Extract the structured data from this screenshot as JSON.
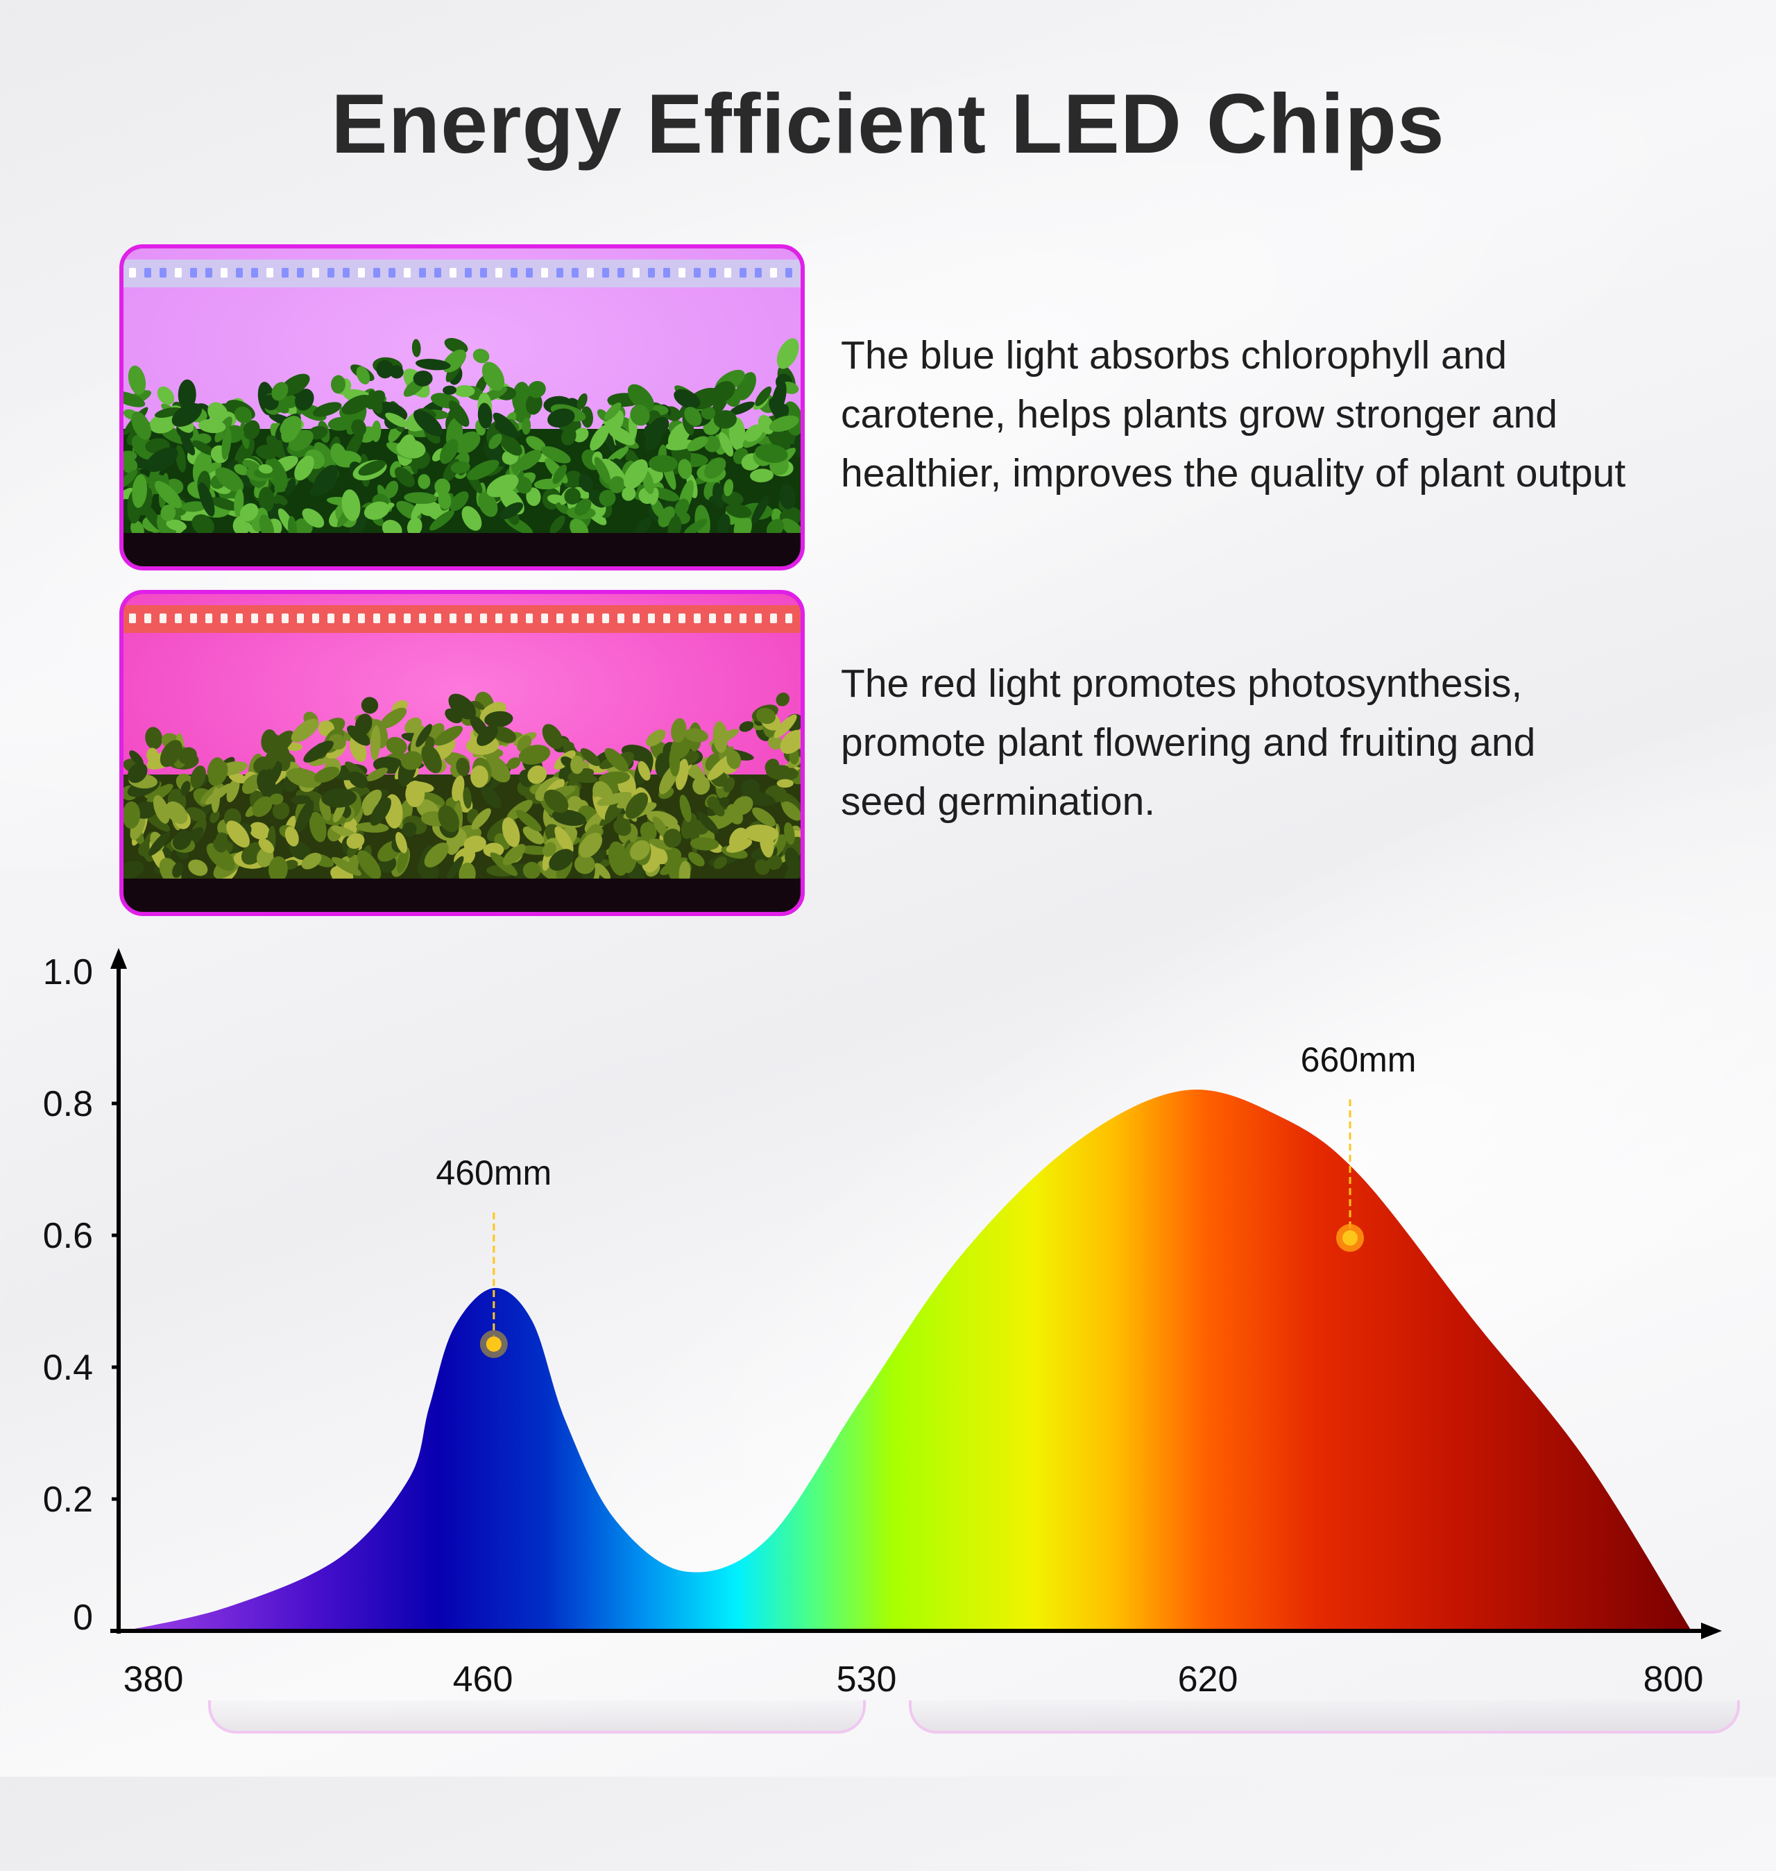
{
  "title": "Energy Efficient LED Chips",
  "panels": [
    {
      "name": "blue-light",
      "lines": [
        "The blue light absorbs chlorophyll and",
        "carotene, helps plants grow stronger and",
        "healthier, improves the quality of plant output"
      ],
      "light_color": "#e890f8",
      "led_color": "#c8c8ff"
    },
    {
      "name": "red-light",
      "lines": [
        "The red light promotes photosynthesis,",
        "promote plant flowering and fruiting and",
        "seed germination."
      ],
      "light_color": "#f040c0",
      "led_color": "#ff6a6a"
    }
  ],
  "colors": {
    "border": "#e020e8",
    "axis": "#000000",
    "marker": "#ffc61a"
  },
  "chart_data": {
    "type": "area",
    "title": "",
    "xlabel": "",
    "ylabel": "",
    "x_ticks": [
      380,
      460,
      530,
      620,
      800
    ],
    "y_ticks": [
      "0",
      "0.2",
      "0.4",
      "0.6",
      "0.8",
      "1.0"
    ],
    "ylim": [
      0,
      1.0
    ],
    "grid": false,
    "fill": "visible-spectrum gradient",
    "points": [
      [
        373,
        0
      ],
      [
        398,
        0.036
      ],
      [
        425,
        0.11
      ],
      [
        442,
        0.23
      ],
      [
        447,
        0.34
      ],
      [
        453,
        0.46
      ],
      [
        462,
        0.52
      ],
      [
        469,
        0.47
      ],
      [
        475,
        0.32
      ],
      [
        484,
        0.17
      ],
      [
        497,
        0.09
      ],
      [
        512,
        0.14
      ],
      [
        529,
        0.35
      ],
      [
        555,
        0.57
      ],
      [
        585,
        0.74
      ],
      [
        614,
        0.82
      ],
      [
        648,
        0.78
      ],
      [
        679,
        0.69
      ],
      [
        723,
        0.47
      ],
      [
        766,
        0.26
      ],
      [
        807,
        0
      ]
    ],
    "annotations": [
      {
        "label": "460mm",
        "x": 462,
        "y": 0.435
      },
      {
        "label": "660mm",
        "x": 675,
        "y": 0.596
      }
    ]
  }
}
